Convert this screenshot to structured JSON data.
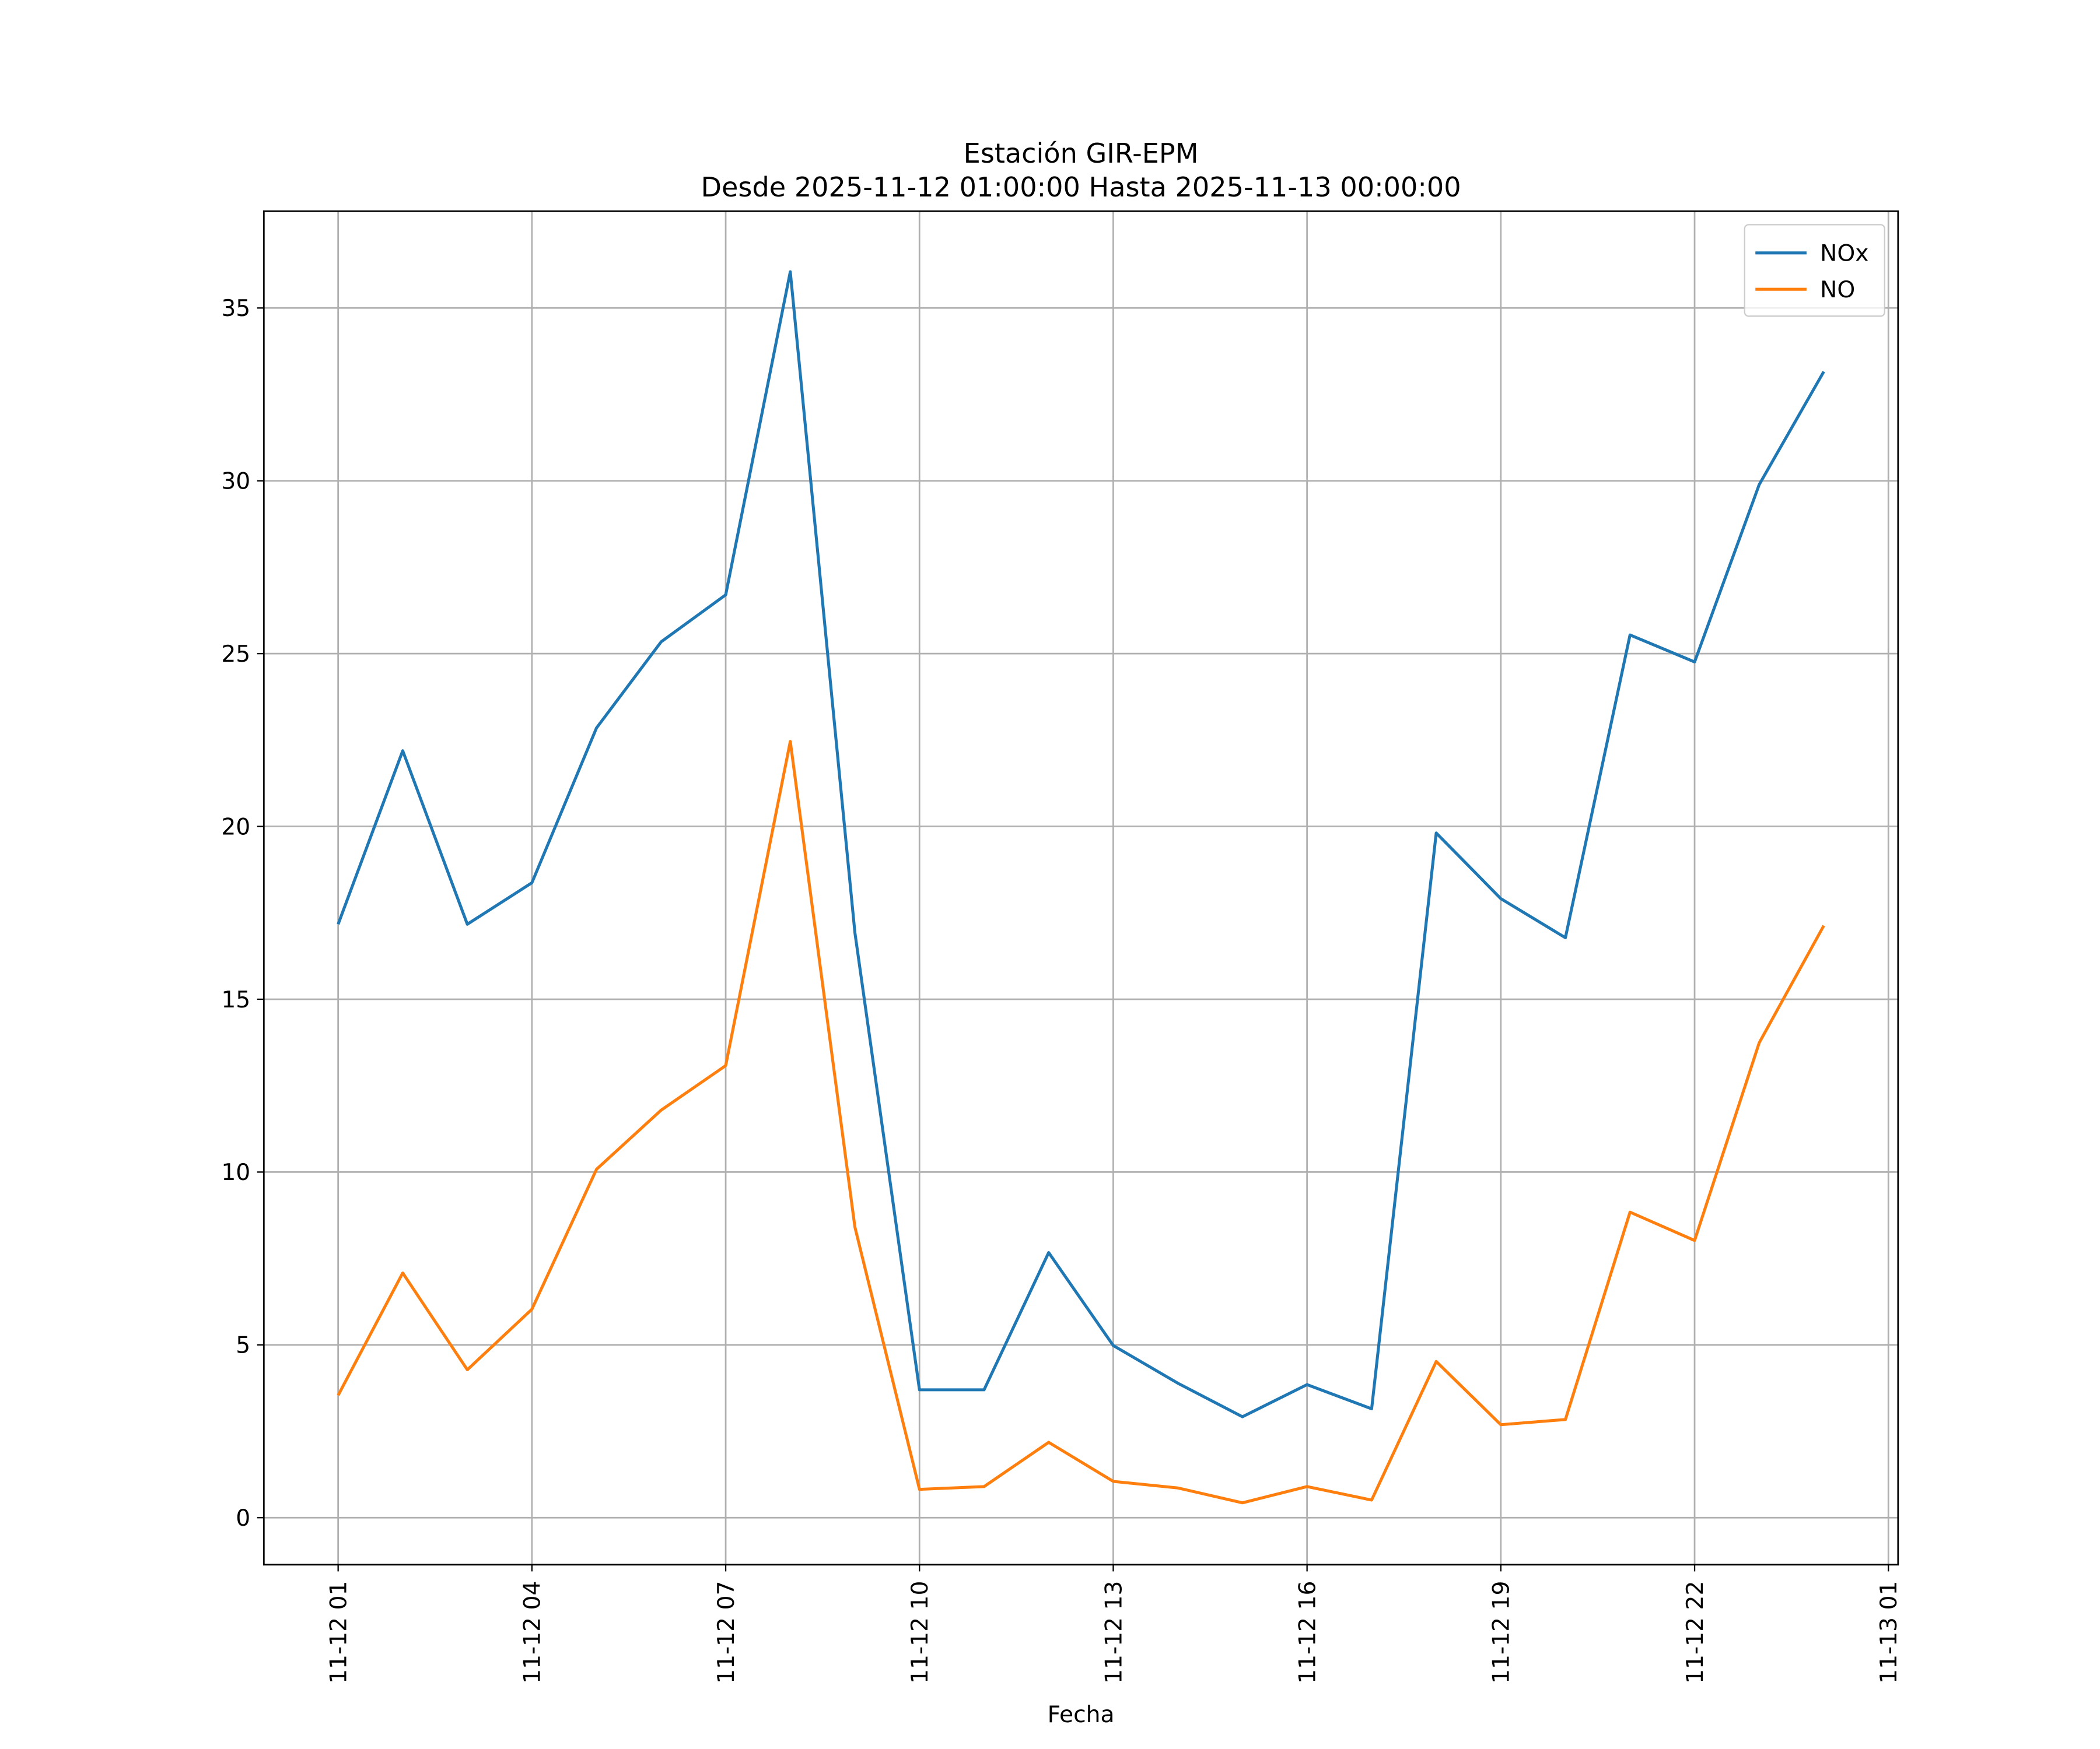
{
  "chart_data": {
    "type": "line",
    "title": "Estación GIR-EPM",
    "subtitle": "Desde 2025-11-12 01:00:00 Hasta 2025-11-13 00:00:00",
    "x_label": "Fecha",
    "x": [
      "11-12 01",
      "11-12 02",
      "11-12 03",
      "11-12 04",
      "11-12 05",
      "11-12 06",
      "11-12 07",
      "11-12 08",
      "11-12 09",
      "11-12 10",
      "11-12 11",
      "11-12 12",
      "11-12 13",
      "11-12 14",
      "11-12 15",
      "11-12 16",
      "11-12 17",
      "11-12 18",
      "11-12 19",
      "11-12 20",
      "11-12 21",
      "11-12 22",
      "11-12 23",
      "11-13 00"
    ],
    "series": [
      {
        "name": "NOx",
        "color": "#1f77b4",
        "values": [
          17.17,
          22.19,
          17.17,
          18.37,
          22.85,
          25.34,
          26.7,
          36.05,
          16.93,
          3.7,
          3.7,
          7.67,
          4.98,
          3.89,
          2.92,
          3.85,
          3.15,
          19.81,
          17.91,
          16.78,
          25.54,
          24.76,
          29.89,
          33.16
        ]
      },
      {
        "name": "NO",
        "color": "#ff7f0e",
        "values": [
          3.54,
          7.08,
          4.28,
          6.03,
          10.08,
          11.79,
          13.08,
          22.46,
          8.41,
          0.82,
          0.9,
          2.18,
          1.05,
          0.86,
          0.43,
          0.9,
          0.51,
          4.52,
          2.69,
          2.84,
          8.84,
          8.02,
          13.74,
          17.13
        ]
      }
    ],
    "xlim": [
      "11-11 23:51",
      "11-13 01:09"
    ],
    "xticks": [
      "11-12 01",
      "11-12 04",
      "11-12 07",
      "11-12 10",
      "11-12 13",
      "11-12 16",
      "11-12 19",
      "11-12 22",
      "11-13 01"
    ],
    "ylim": [
      -1.36,
      37.8
    ],
    "yticks": [
      0,
      5,
      10,
      15,
      20,
      25,
      30,
      35
    ],
    "grid": true,
    "legend": "upper right"
  }
}
